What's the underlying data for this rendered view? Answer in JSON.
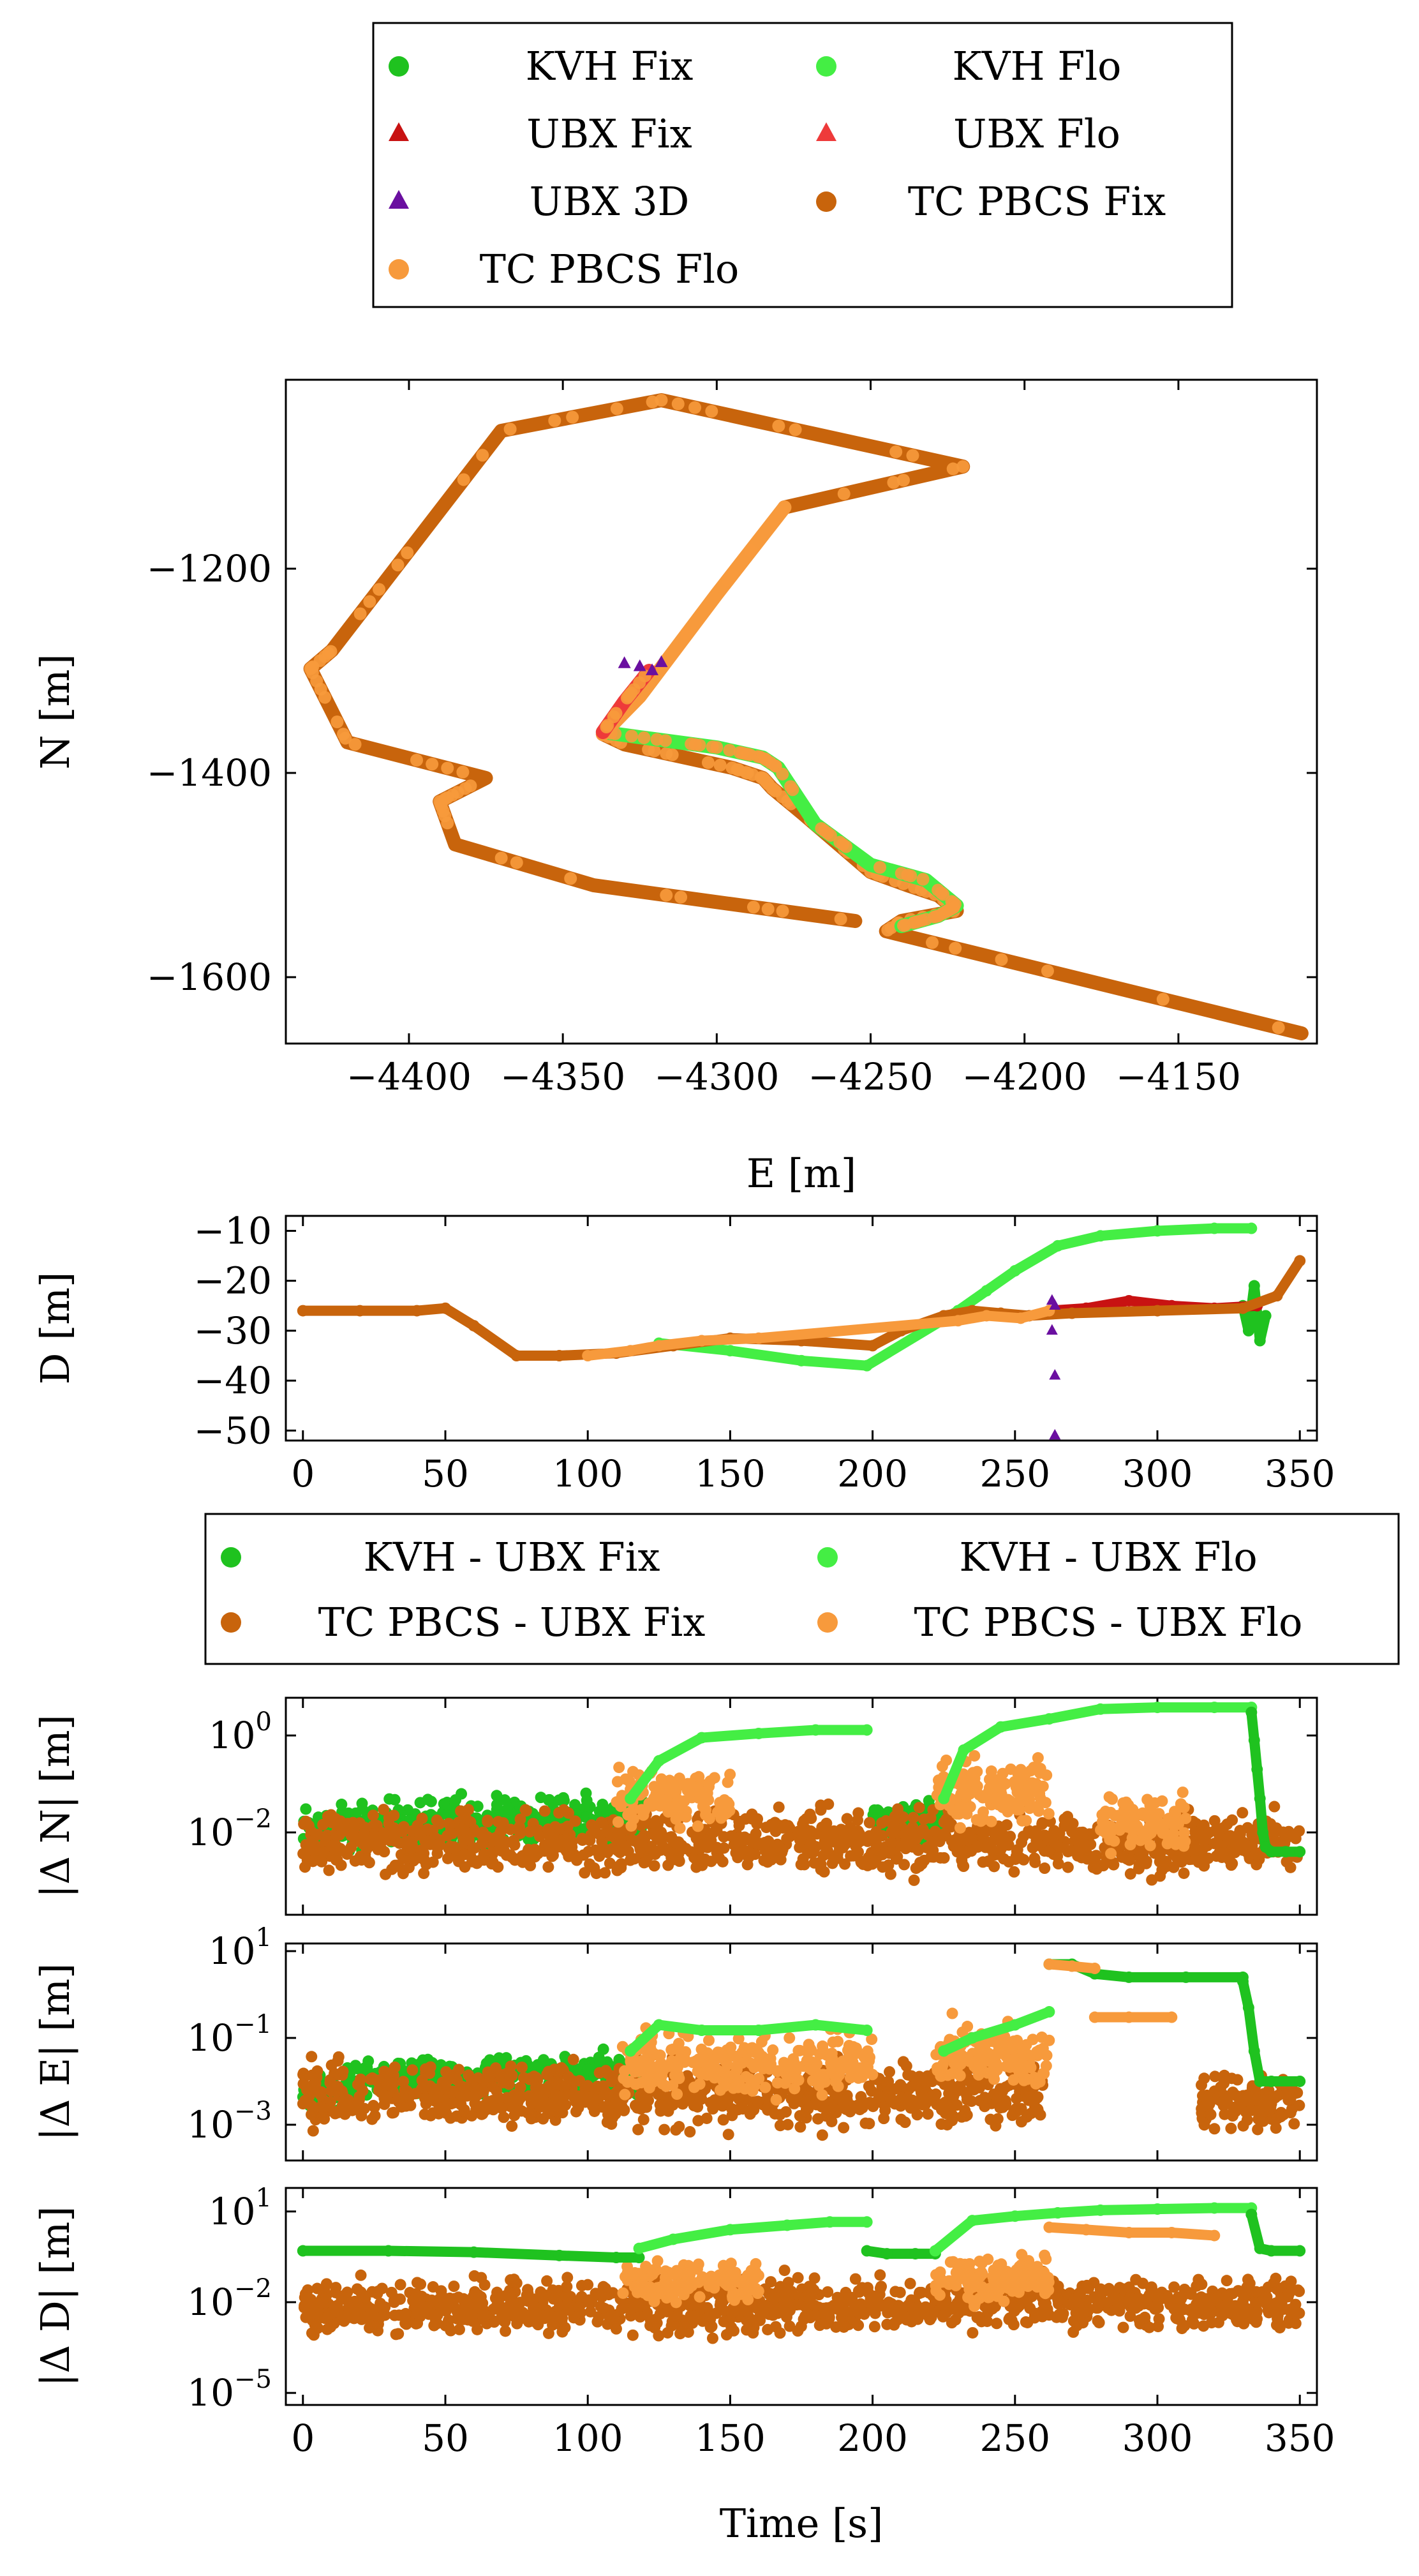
{
  "colors": {
    "kvh_fix": "#1fc21f",
    "kvh_flo": "#44ee44",
    "ubx_fix": "#c81212",
    "ubx_flo": "#ee3a3a",
    "ubx_3d": "#6a0fa0",
    "tc_fix": "#c8640c",
    "tc_flo": "#f79a3c"
  },
  "chart_data": [
    {
      "type": "legend",
      "entries": [
        {
          "label": "KVH Fix",
          "marker": "circle",
          "color": "kvh_fix"
        },
        {
          "label": "KVH Flo",
          "marker": "circle",
          "color": "kvh_flo"
        },
        {
          "label": "UBX Fix",
          "marker": "triangle",
          "color": "ubx_fix"
        },
        {
          "label": "UBX Flo",
          "marker": "triangle",
          "color": "ubx_flo"
        },
        {
          "label": "UBX 3D",
          "marker": "triangle",
          "color": "ubx_3d"
        },
        {
          "label": "TC PBCS Fix",
          "marker": "circle",
          "color": "tc_fix"
        },
        {
          "label": "TC PBCS Flo",
          "marker": "circle",
          "color": "tc_flo"
        }
      ]
    },
    {
      "type": "scatter",
      "xlabel": "E [m]",
      "ylabel": "N [m]",
      "xlim": [
        -4440,
        -4105
      ],
      "ylim": [
        -1665,
        -1015
      ],
      "xticks": [
        -4400,
        -4350,
        -4300,
        -4250,
        -4200,
        -4150
      ],
      "xtick_labels": [
        "−4400",
        "−4350",
        "−4300",
        "−4250",
        "−4200",
        "−4150"
      ],
      "yticks": [
        -1200,
        -1400,
        -1600
      ],
      "ytick_labels": [
        "−1200",
        "−1400",
        "−1600"
      ],
      "track_segments": [
        {
          "name": "",
          "color": "tc_fix",
          "x": [
            -4110,
            -4245,
            -4240,
            -4222,
            -4228,
            -4238,
            -4250,
            -4272,
            -4282,
            -4285,
            -4295,
            -4330,
            -4337
          ],
          "y": [
            -1655,
            -1555,
            -1545,
            -1535,
            -1520,
            -1510,
            -1497,
            -1440,
            -1415,
            -1405,
            -1395,
            -1372,
            -1362
          ]
        },
        {
          "name": "",
          "color": "kvh_flo",
          "x": [
            -4337,
            -4325,
            -4300,
            -4285,
            -4280,
            -4268,
            -4250,
            -4232,
            -4222,
            -4228,
            -4240
          ],
          "y": [
            -1360,
            -1365,
            -1375,
            -1385,
            -1395,
            -1450,
            -1490,
            -1505,
            -1530,
            -1540,
            -1550
          ]
        },
        {
          "name": "",
          "color": "tc_fix",
          "x": [
            -4255,
            -4340,
            -4385,
            -4390,
            -4375,
            -4420,
            -4432,
            -4425,
            -4370,
            -4318,
            -4220,
            -4278
          ],
          "y": [
            -1545,
            -1510,
            -1470,
            -1428,
            -1405,
            -1370,
            -1298,
            -1280,
            -1065,
            -1035,
            -1100,
            -1140
          ]
        },
        {
          "name": "",
          "color": "tc_flo",
          "x": [
            -4278,
            -4300,
            -4325,
            -4337
          ],
          "y": [
            -1140,
            -1225,
            -1325,
            -1362
          ]
        },
        {
          "name": "",
          "color": "ubx_flo",
          "x": [
            -4337,
            -4330,
            -4322
          ],
          "y": [
            -1360,
            -1330,
            -1300
          ]
        }
      ],
      "ubx_3d_points": {
        "x": [
          -4330,
          -4325,
          -4321,
          -4318
        ],
        "y": [
          -1293,
          -1296,
          -1300,
          -1292
        ]
      }
    },
    {
      "type": "scatter",
      "ylabel": "D [m]",
      "xlim": [
        -6,
        356
      ],
      "ylim": [
        -52,
        -7
      ],
      "xticks": [
        0,
        50,
        100,
        150,
        200,
        250,
        300,
        350
      ],
      "xtick_labels": [
        "0",
        "50",
        "100",
        "150",
        "200",
        "250",
        "300",
        "350"
      ],
      "yticks": [
        -10,
        -20,
        -30,
        -40,
        -50
      ],
      "ytick_labels": [
        "−10",
        "−20",
        "−30",
        "−40",
        "−50"
      ],
      "series": [
        {
          "name": "",
          "color": "kvh_flo",
          "x": [
            125,
            150,
            175,
            198,
            230,
            240,
            250,
            265,
            280,
            300,
            320,
            333
          ],
          "y": [
            -32.5,
            -34,
            -36,
            -37,
            -26,
            -22,
            -18,
            -13,
            -11,
            -10,
            -9.5,
            -9.5
          ]
        },
        {
          "name": "",
          "color": "kvh_fix",
          "x": [
            330,
            332,
            334,
            336,
            338
          ],
          "y": [
            -25,
            -30,
            -21,
            -32,
            -27
          ]
        },
        {
          "name": "",
          "color": "ubx_fix",
          "x": [
            262,
            275,
            290,
            305,
            320,
            335
          ],
          "y": [
            -26,
            -25.5,
            -24,
            -25,
            -25.5,
            -25
          ]
        },
        {
          "name": "",
          "color": "tc_fix",
          "x": [
            0,
            20,
            40,
            50,
            60,
            75,
            90,
            110,
            130,
            150,
            175,
            200,
            210,
            225,
            235,
            245,
            255,
            270,
            300,
            330,
            342,
            350
          ],
          "y": [
            -26,
            -26,
            -26,
            -25.5,
            -29,
            -35,
            -35,
            -34.5,
            -33,
            -31.5,
            -32,
            -33,
            -30,
            -27,
            -26,
            -26.5,
            -27,
            -26.5,
            -26,
            -25.5,
            -23,
            -16
          ]
        },
        {
          "name": "",
          "color": "tc_flo",
          "x": [
            100,
            115,
            125,
            140,
            160,
            230,
            240,
            252,
            262
          ],
          "y": [
            -35,
            -34,
            -33,
            -32,
            -31.5,
            -28,
            -27,
            -27.5,
            -26
          ]
        }
      ],
      "ubx_3d_points": {
        "x": [
          263,
          263,
          264,
          264,
          264
        ],
        "y": [
          -24,
          -30,
          -39,
          -51,
          -25
        ]
      }
    },
    {
      "type": "legend",
      "entries": [
        {
          "label": "KVH - UBX Fix",
          "marker": "circle",
          "color": "kvh_fix"
        },
        {
          "label": "KVH - UBX Flo",
          "marker": "circle",
          "color": "kvh_flo"
        },
        {
          "label": "TC PBCS - UBX Fix",
          "marker": "circle",
          "color": "tc_fix"
        },
        {
          "label": "TC PBCS - UBX Flo",
          "marker": "circle",
          "color": "tc_flo"
        }
      ]
    },
    {
      "type": "scatter",
      "ylabel": "|Δ N| [m]",
      "y_scale": "log",
      "xlim": [
        -6,
        356
      ],
      "ylim": [
        0.0002,
        6
      ],
      "yticks": [
        1,
        0.01
      ],
      "ytick_labels": [
        {
          "base": "10",
          "exp": "0"
        },
        {
          "base": "10",
          "exp": "−2"
        }
      ],
      "series": [
        {
          "name": "KVH Flo",
          "color": "kvh_flo",
          "x": [
            115,
            125,
            140,
            160,
            180,
            198
          ],
          "y": [
            0.05,
            0.3,
            0.9,
            1.1,
            1.3,
            1.3
          ]
        },
        {
          "name": "KVH Flo",
          "color": "kvh_flo",
          "x": [
            225,
            232,
            245,
            262,
            280,
            300,
            320,
            333
          ],
          "y": [
            0.05,
            0.5,
            1.5,
            2.2,
            3.5,
            3.8,
            3.8,
            3.8
          ]
        },
        {
          "name": "KVH Fix",
          "color": "kvh_fix",
          "x": [
            333,
            334,
            335,
            336,
            337,
            338,
            340,
            345,
            350
          ],
          "y": [
            3,
            0.8,
            0.2,
            0.05,
            0.01,
            0.005,
            0.004,
            0.004,
            0.004
          ]
        }
      ],
      "noise_bands": [
        {
          "color": "kvh_fix",
          "x": [
            0,
            120
          ],
          "log_center": [
            -1.9,
            -1.7
          ],
          "spread": 0.7
        },
        {
          "color": "kvh_fix",
          "x": [
            200,
            225
          ],
          "log_center": [
            -1.8,
            -1.8
          ],
          "spread": 0.6
        },
        {
          "color": "tc_fix",
          "x": [
            0,
            350
          ],
          "log_center": [
            -2.2,
            -2.2
          ],
          "spread": 0.9
        },
        {
          "color": "tc_flo",
          "x": [
            110,
            150
          ],
          "log_center": [
            -1.3,
            -1.3
          ],
          "spread": 0.8
        },
        {
          "color": "tc_flo",
          "x": [
            222,
            262
          ],
          "log_center": [
            -1.2,
            -1.2
          ],
          "spread": 0.9
        },
        {
          "color": "tc_flo",
          "x": [
            280,
            310
          ],
          "log_center": [
            -1.8,
            -1.8
          ],
          "spread": 0.8
        }
      ]
    },
    {
      "type": "scatter",
      "ylabel": "|Δ E| [m]",
      "y_scale": "log",
      "xlim": [
        -6,
        356
      ],
      "ylim": [
        0.00015,
        15
      ],
      "yticks": [
        10,
        0.1,
        0.001
      ],
      "ytick_labels": [
        {
          "base": "10",
          "exp": "1"
        },
        {
          "base": "10",
          "exp": "−1"
        },
        {
          "base": "10",
          "exp": "−3"
        }
      ],
      "series": [
        {
          "name": "KVH Flo",
          "color": "kvh_flo",
          "x": [
            115,
            125,
            140,
            160,
            180,
            198
          ],
          "y": [
            0.05,
            0.2,
            0.15,
            0.15,
            0.2,
            0.15
          ]
        },
        {
          "name": "KVH Flo",
          "color": "kvh_flo",
          "x": [
            225,
            235,
            250,
            262
          ],
          "y": [
            0.05,
            0.1,
            0.2,
            0.4
          ]
        },
        {
          "name": "KVH Fix",
          "color": "kvh_fix",
          "x": [
            262,
            270,
            278,
            290,
            310,
            330
          ],
          "y": [
            5,
            5,
            3,
            2.5,
            2.5,
            2.5
          ]
        },
        {
          "name": "KVH Fix",
          "color": "kvh_fix",
          "x": [
            330,
            332,
            334,
            336,
            340,
            350
          ],
          "y": [
            2,
            0.5,
            0.05,
            0.01,
            0.01,
            0.01
          ]
        },
        {
          "name": "TC PBCS Flo",
          "color": "tc_flo",
          "x": [
            262,
            270,
            278
          ],
          "y": [
            5,
            4.5,
            4
          ]
        },
        {
          "name": "TC PBCS Flo",
          "color": "tc_flo",
          "x": [
            278,
            290,
            305
          ],
          "y": [
            0.3,
            0.3,
            0.3
          ]
        }
      ],
      "noise_bands": [
        {
          "color": "kvh_fix",
          "x": [
            0,
            15
          ],
          "log_center": [
            -2.3,
            -2.3
          ],
          "spread": 0.6
        },
        {
          "color": "kvh_fix",
          "x": [
            15,
            120
          ],
          "log_center": [
            -2.0,
            -1.8
          ],
          "spread": 0.7
        },
        {
          "color": "tc_fix",
          "x": [
            0,
            260
          ],
          "log_center": [
            -2.3,
            -2.3
          ],
          "spread": 1.0
        },
        {
          "color": "tc_fix",
          "x": [
            315,
            350
          ],
          "log_center": [
            -2.5,
            -2.5
          ],
          "spread": 0.9
        },
        {
          "color": "tc_flo",
          "x": [
            112,
            200
          ],
          "log_center": [
            -1.6,
            -1.6
          ],
          "spread": 1.0
        },
        {
          "color": "tc_flo",
          "x": [
            222,
            262
          ],
          "log_center": [
            -1.4,
            -1.4
          ],
          "spread": 1.0
        }
      ]
    },
    {
      "type": "scatter",
      "ylabel": "|Δ D| [m]",
      "y_scale": "log",
      "xlabel": "Time [s]",
      "xlim": [
        -6,
        356
      ],
      "ylim": [
        4e-06,
        60
      ],
      "xticks": [
        0,
        50,
        100,
        150,
        200,
        250,
        300,
        350
      ],
      "xtick_labels": [
        "0",
        "50",
        "100",
        "150",
        "200",
        "250",
        "300",
        "350"
      ],
      "yticks": [
        10,
        0.01,
        1e-05
      ],
      "ytick_labels": [
        {
          "base": "10",
          "exp": "1"
        },
        {
          "base": "10",
          "exp": "−2"
        },
        {
          "base": "10",
          "exp": "−5"
        }
      ],
      "series": [
        {
          "name": "KVH Fix",
          "color": "kvh_fix",
          "x": [
            0,
            30,
            60,
            90,
            110,
            118
          ],
          "y": [
            0.5,
            0.5,
            0.45,
            0.35,
            0.3,
            0.3
          ]
        },
        {
          "name": "KVH Flo",
          "color": "kvh_flo",
          "x": [
            118,
            130,
            150,
            170,
            185,
            198
          ],
          "y": [
            0.6,
            1.2,
            2.5,
            3.5,
            4.5,
            4.5
          ]
        },
        {
          "name": "KVH Fix",
          "color": "kvh_fix",
          "x": [
            198,
            205,
            215,
            222
          ],
          "y": [
            0.5,
            0.4,
            0.4,
            0.4
          ]
        },
        {
          "name": "KVH Flo",
          "color": "kvh_flo",
          "x": [
            222,
            235,
            250,
            265,
            280,
            300,
            320,
            333
          ],
          "y": [
            0.5,
            5,
            7,
            9,
            11,
            12,
            13,
            13
          ]
        },
        {
          "name": "KVH Fix",
          "color": "kvh_fix",
          "x": [
            333,
            336,
            340,
            350
          ],
          "y": [
            8,
            0.6,
            0.5,
            0.5
          ]
        },
        {
          "name": "TC PBCS Flo",
          "color": "tc_flo",
          "x": [
            262,
            275,
            290,
            305,
            320
          ],
          "y": [
            3,
            2.5,
            2,
            2,
            1.6
          ]
        }
      ],
      "noise_bands": [
        {
          "color": "tc_fix",
          "x": [
            0,
            350
          ],
          "log_center": [
            -2.2,
            -2.0
          ],
          "spread": 1.2
        },
        {
          "color": "tc_flo",
          "x": [
            112,
            160
          ],
          "log_center": [
            -1.3,
            -1.3
          ],
          "spread": 1.0
        },
        {
          "color": "tc_flo",
          "x": [
            222,
            262
          ],
          "log_center": [
            -1.2,
            -1.2
          ],
          "spread": 1.0
        }
      ]
    }
  ]
}
